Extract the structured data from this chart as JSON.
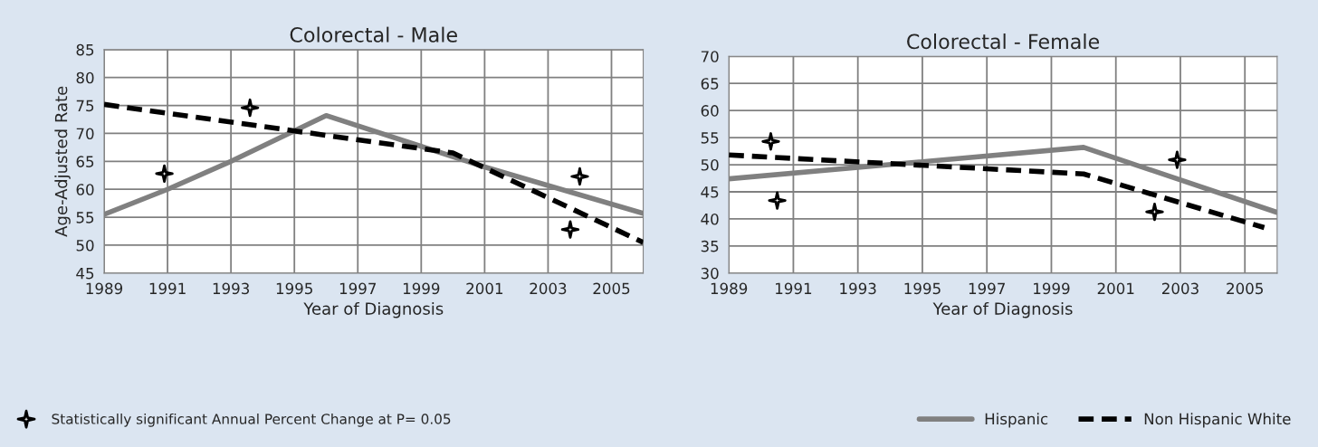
{
  "chart_data": [
    {
      "type": "line",
      "title": "Colorectal - Male",
      "xlabel": "Year of Diagnosis",
      "ylabel": "Age-Adjusted Rate",
      "xlim": [
        1989,
        2006
      ],
      "xticks": [
        1989,
        1991,
        1993,
        1995,
        1997,
        1999,
        2001,
        2003,
        2005
      ],
      "ylim": [
        45,
        85
      ],
      "yticks": [
        45,
        50,
        55,
        60,
        65,
        70,
        75,
        80,
        85
      ],
      "grid": true,
      "legend": "bottom",
      "series": [
        {
          "name": "Hispanic",
          "color": "#808080",
          "line_style": "solid",
          "x": [
            1989,
            1991,
            1993,
            1996,
            2001,
            2006
          ],
          "values": [
            55.5,
            60.0,
            65.0,
            73.2,
            64.0,
            55.7
          ]
        },
        {
          "name": "Non Hispanic White",
          "color": "#000000",
          "line_style": "dashed",
          "x": [
            1989,
            2000,
            2006
          ],
          "values": [
            75.2,
            66.5,
            50.5
          ]
        },
        {
          "name": "Statistically significant Annual Percent Change at P= 0.05",
          "type": "scatter",
          "marker": "star",
          "color": "#000000",
          "x": [
            1990.9,
            1993.6,
            2004.0,
            2003.7
          ],
          "values": [
            62.8,
            74.6,
            62.3,
            52.8
          ]
        }
      ]
    },
    {
      "type": "line",
      "title": "Colorectal - Female",
      "xlabel": "Year of Diagnosis",
      "xlim": [
        1989,
        2006
      ],
      "xticks": [
        1989,
        1991,
        1993,
        1995,
        1997,
        1999,
        2001,
        2003,
        2005
      ],
      "ylim": [
        30,
        70
      ],
      "yticks": [
        30,
        35,
        40,
        45,
        50,
        55,
        60,
        65,
        70
      ],
      "grid": true,
      "legend": "bottom",
      "series": [
        {
          "name": "Hispanic",
          "color": "#808080",
          "line_style": "solid",
          "x": [
            1989,
            2000,
            2006
          ],
          "values": [
            47.4,
            53.2,
            41.2
          ]
        },
        {
          "name": "Non Hispanic White",
          "color": "#000000",
          "line_style": "dashed",
          "x": [
            1989,
            2000,
            2005.6
          ],
          "values": [
            51.8,
            48.3,
            38.4
          ]
        },
        {
          "name": "Statistically significant Annual Percent Change at P= 0.05",
          "type": "scatter",
          "marker": "star",
          "color": "#000000",
          "x": [
            1990.3,
            1990.5,
            2002.2,
            2002.9
          ],
          "values": [
            54.3,
            43.4,
            41.3,
            50.9
          ]
        }
      ]
    }
  ]
}
